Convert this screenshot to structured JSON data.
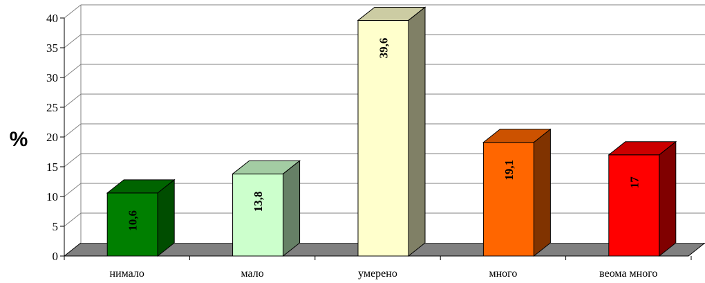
{
  "chart_data": {
    "type": "bar",
    "categories": [
      "нимало",
      "мало",
      "умерено",
      "много",
      "веома много"
    ],
    "values": [
      10.6,
      13.8,
      39.6,
      19.1,
      17
    ],
    "value_labels": [
      "10,6",
      "13,8",
      "39,6",
      "19,1",
      "17"
    ],
    "ylabel": "%",
    "xlabel": "",
    "title": "",
    "ylim": [
      0,
      40
    ],
    "yticks": [
      "0",
      "5",
      "10",
      "15",
      "20",
      "25",
      "30",
      "35",
      "40"
    ],
    "grid": true,
    "legend": "none",
    "three_d": true,
    "colors": {
      "front": [
        "#007f00",
        "#ccffcc",
        "#ffffcc",
        "#ff6600",
        "#ff0000"
      ],
      "top": [
        "#006400",
        "#a3cca3",
        "#cccca3",
        "#cc5200",
        "#cc0000"
      ],
      "side": [
        "#004d00",
        "#668066",
        "#808066",
        "#803300",
        "#800000"
      ],
      "floor": "#808080",
      "wall": "#ffffff",
      "grid": "#808080"
    }
  }
}
